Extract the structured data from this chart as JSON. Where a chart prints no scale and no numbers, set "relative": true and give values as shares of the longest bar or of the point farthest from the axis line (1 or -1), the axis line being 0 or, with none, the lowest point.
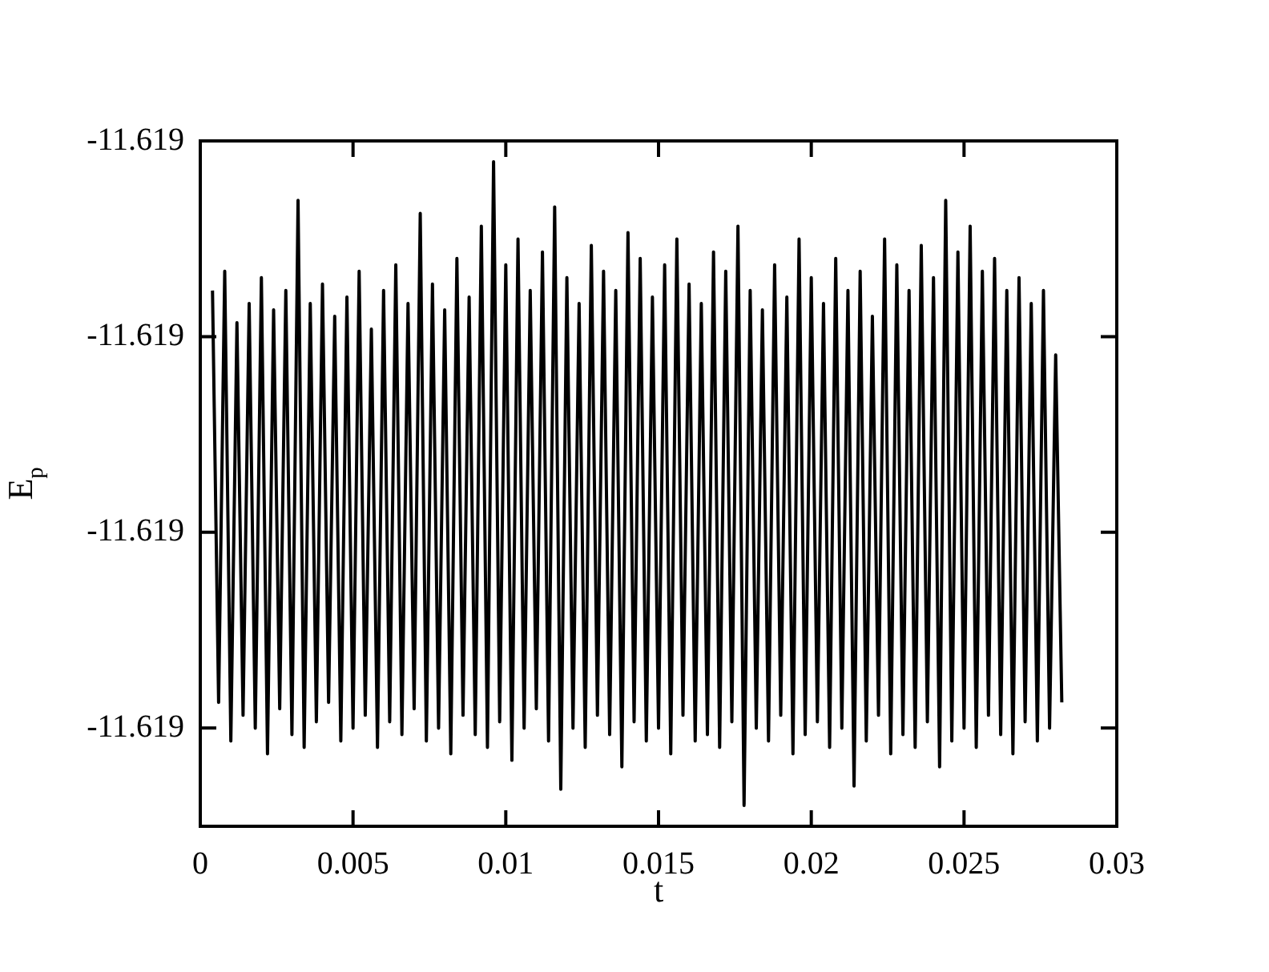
{
  "chart_data": {
    "type": "line",
    "xlabel": "t",
    "ylabel": "E$_{p}$",
    "relative": true,
    "color": "#000000",
    "xlim": [
      0,
      0.03
    ],
    "xticks": [
      0,
      0.005,
      0.01,
      0.015,
      0.02,
      0.025,
      0.03
    ],
    "annotations": [
      "-11.619",
      "-11.619",
      "-11.619",
      "-11.619"
    ],
    "x": [
      0.0004,
      0.0006,
      0.0008,
      0.001,
      0.0012,
      0.0014,
      0.0016,
      0.0018,
      0.002,
      0.0022,
      0.0024,
      0.0026,
      0.0028,
      0.003,
      0.0032,
      0.0034,
      0.0036,
      0.0038,
      0.004,
      0.0042,
      0.0044,
      0.0046,
      0.0048,
      0.005,
      0.0052,
      0.0054,
      0.0056,
      0.0058,
      0.006,
      0.0062,
      0.0064,
      0.0066,
      0.0068,
      0.007,
      0.0072,
      0.0074,
      0.0076,
      0.0078,
      0.008,
      0.0082,
      0.0084,
      0.0086,
      0.0088,
      0.009,
      0.0092,
      0.0094,
      0.0096,
      0.0098,
      0.01,
      0.0102,
      0.0104,
      0.0106,
      0.0108,
      0.011,
      0.0112,
      0.0114,
      0.0116,
      0.0118,
      0.012,
      0.0122,
      0.0124,
      0.0126,
      0.0128,
      0.013,
      0.0132,
      0.0134,
      0.0136,
      0.0138,
      0.014,
      0.0142,
      0.0144,
      0.0146,
      0.0148,
      0.015,
      0.0152,
      0.0154,
      0.0156,
      0.0158,
      0.016,
      0.0162,
      0.0164,
      0.0166,
      0.0168,
      0.017,
      0.0172,
      0.0174,
      0.0176,
      0.0178,
      0.018,
      0.0182,
      0.0184,
      0.0186,
      0.0188,
      0.019,
      0.0192,
      0.0194,
      0.0196,
      0.0198,
      0.02,
      0.0202,
      0.0204,
      0.0206,
      0.0208,
      0.021,
      0.0212,
      0.0214,
      0.0216,
      0.0218,
      0.022,
      0.0222,
      0.0224,
      0.0226,
      0.0228,
      0.023,
      0.0232,
      0.0234,
      0.0236,
      0.0238,
      0.024,
      0.0242,
      0.0244,
      0.0246,
      0.0248,
      0.025,
      0.0252,
      0.0254,
      0.0256,
      0.0258,
      0.026,
      0.0262,
      0.0264,
      0.0266,
      0.0268,
      0.027,
      0.0272,
      0.0274,
      0.0276,
      0.0278,
      0.028,
      0.0282
    ],
    "values": [
      0.8,
      0.16,
      0.83,
      0.1,
      0.75,
      0.14,
      0.78,
      0.12,
      0.82,
      0.08,
      0.77,
      0.15,
      0.8,
      0.11,
      0.94,
      0.09,
      0.78,
      0.13,
      0.81,
      0.16,
      0.76,
      0.1,
      0.79,
      0.12,
      0.83,
      0.14,
      0.74,
      0.09,
      0.8,
      0.13,
      0.84,
      0.11,
      0.78,
      0.15,
      0.92,
      0.1,
      0.81,
      0.12,
      0.77,
      0.08,
      0.85,
      0.14,
      0.79,
      0.11,
      0.9,
      0.09,
      1.0,
      0.13,
      0.84,
      0.07,
      0.88,
      0.12,
      0.8,
      0.15,
      0.86,
      0.1,
      0.93,
      0.025,
      0.82,
      0.12,
      0.78,
      0.09,
      0.87,
      0.14,
      0.83,
      0.11,
      0.8,
      0.06,
      0.89,
      0.13,
      0.85,
      0.1,
      0.79,
      0.12,
      0.84,
      0.08,
      0.88,
      0.14,
      0.81,
      0.1,
      0.78,
      0.11,
      0.86,
      0.09,
      0.83,
      0.13,
      0.9,
      0.0,
      0.8,
      0.12,
      0.77,
      0.1,
      0.84,
      0.14,
      0.79,
      0.08,
      0.88,
      0.11,
      0.82,
      0.13,
      0.78,
      0.09,
      0.85,
      0.12,
      0.8,
      0.03,
      0.83,
      0.1,
      0.76,
      0.14,
      0.88,
      0.08,
      0.84,
      0.11,
      0.8,
      0.09,
      0.87,
      0.13,
      0.82,
      0.06,
      0.94,
      0.1,
      0.86,
      0.12,
      0.9,
      0.09,
      0.83,
      0.14,
      0.85,
      0.11,
      0.8,
      0.08,
      0.82,
      0.13,
      0.78,
      0.1,
      0.8,
      0.12,
      0.7,
      0.16
    ]
  }
}
